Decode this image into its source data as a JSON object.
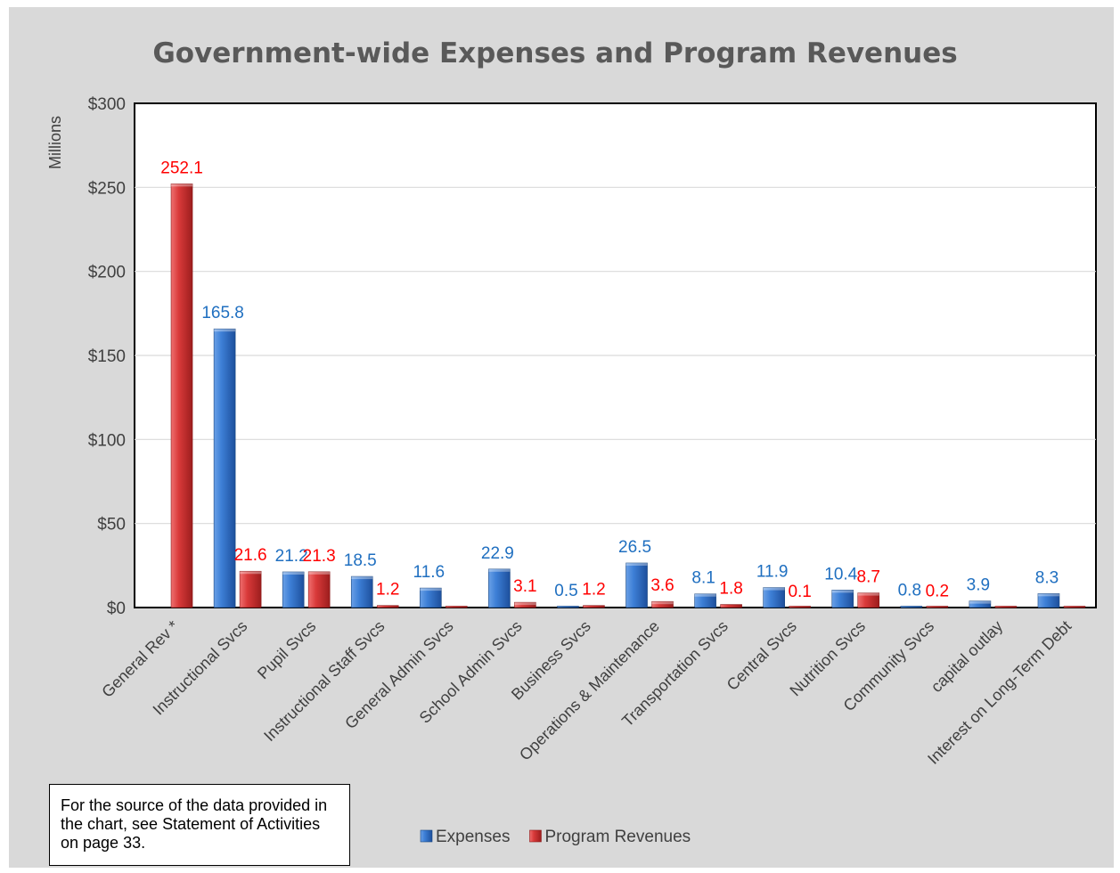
{
  "chart_data": {
    "type": "bar",
    "title": "Government-wide Expenses and Program Revenues",
    "ylabel": "Millions",
    "ylim": [
      0,
      300
    ],
    "yticks": [
      "$0",
      "$50",
      "$100",
      "$150",
      "$200",
      "$250",
      "$300"
    ],
    "grid": true,
    "legend_position": "bottom",
    "categories": [
      "General Rev *",
      "Instructional Svcs",
      "Pupil Svcs",
      "Instructional Staff Svcs",
      "General Admin Svcs",
      "School Admin Svcs",
      "Business Svcs",
      "Operations & Maintenance",
      "Transportation Svcs",
      "Central Svcs",
      "Nutrition Svcs",
      "Community Svcs",
      "capital outlay",
      "Interest on Long-Term Debt"
    ],
    "series": [
      {
        "name": "Expenses",
        "color": "#2e6cc4",
        "label_color": "#1f6fc0",
        "values": [
          null,
          165.8,
          21.2,
          18.5,
          11.6,
          22.9,
          0.5,
          26.5,
          8.1,
          11.9,
          10.4,
          0.8,
          3.9,
          8.3
        ]
      },
      {
        "name": "Program Revenues",
        "color": "#d43535",
        "label_color": "#ff0000",
        "values": [
          252.1,
          21.6,
          21.3,
          1.2,
          0,
          3.1,
          1.2,
          3.6,
          1.8,
          0.1,
          8.7,
          0.2,
          0,
          0
        ]
      }
    ]
  },
  "notes": {
    "source_text": "For the source of the data provided in the chart, see Statement of Activities on page 33."
  }
}
